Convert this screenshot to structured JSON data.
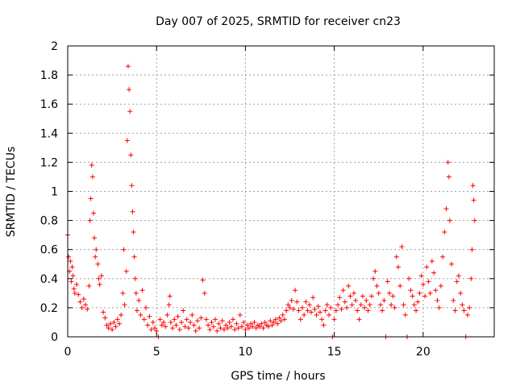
{
  "chart_data": {
    "type": "scatter",
    "title": "Day 007 of 2025, SRMTID for receiver cn23",
    "xlabel": "GPS time / hours",
    "ylabel": "SRMTID / TECUs",
    "xlim": [
      0,
      24
    ],
    "ylim": [
      0,
      2
    ],
    "x_ticks": [
      0,
      5,
      10,
      15,
      20
    ],
    "x_tick_labels": [
      "0",
      "5",
      "10",
      "15",
      "20"
    ],
    "y_ticks": [
      0,
      0.2,
      0.4,
      0.6,
      0.8,
      1,
      1.2,
      1.4,
      1.6,
      1.8,
      2
    ],
    "y_tick_labels": [
      "0",
      "0.2",
      "0.4",
      "0.6",
      "0.8",
      "1",
      "1.2",
      "1.4",
      "1.6",
      "1.8",
      "2"
    ],
    "grid": true,
    "marker": "+",
    "marker_color": "#ff0000",
    "series": [
      {
        "name": "SRMTID",
        "points": [
          [
            0.0,
            0.7
          ],
          [
            0.05,
            0.55
          ],
          [
            0.1,
            0.45
          ],
          [
            0.15,
            0.52
          ],
          [
            0.2,
            0.38
          ],
          [
            0.25,
            0.48
          ],
          [
            0.3,
            0.42
          ],
          [
            0.35,
            0.33
          ],
          [
            0.4,
            0.3
          ],
          [
            0.5,
            0.36
          ],
          [
            0.6,
            0.29
          ],
          [
            0.7,
            0.24
          ],
          [
            0.8,
            0.2
          ],
          [
            0.9,
            0.26
          ],
          [
            1.0,
            0.22
          ],
          [
            1.1,
            0.19
          ],
          [
            1.2,
            0.35
          ],
          [
            1.25,
            0.8
          ],
          [
            1.3,
            0.95
          ],
          [
            1.35,
            1.18
          ],
          [
            1.4,
            1.1
          ],
          [
            1.45,
            0.85
          ],
          [
            1.5,
            0.68
          ],
          [
            1.55,
            0.55
          ],
          [
            1.6,
            0.6
          ],
          [
            1.7,
            0.5
          ],
          [
            1.75,
            0.4
          ],
          [
            1.8,
            0.36
          ],
          [
            1.9,
            0.42
          ],
          [
            2.0,
            0.17
          ],
          [
            2.1,
            0.13
          ],
          [
            2.2,
            0.08
          ],
          [
            2.3,
            0.06
          ],
          [
            2.4,
            0.09
          ],
          [
            2.5,
            0.05
          ],
          [
            2.6,
            0.1
          ],
          [
            2.7,
            0.07
          ],
          [
            2.8,
            0.12
          ],
          [
            2.9,
            0.09
          ],
          [
            3.0,
            0.15
          ],
          [
            3.1,
            0.3
          ],
          [
            3.15,
            0.6
          ],
          [
            3.2,
            0.22
          ],
          [
            3.3,
            0.45
          ],
          [
            3.35,
            1.35
          ],
          [
            3.4,
            1.86
          ],
          [
            3.45,
            1.7
          ],
          [
            3.5,
            1.55
          ],
          [
            3.55,
            1.25
          ],
          [
            3.6,
            1.04
          ],
          [
            3.65,
            0.86
          ],
          [
            3.7,
            0.72
          ],
          [
            3.75,
            0.55
          ],
          [
            3.8,
            0.4
          ],
          [
            3.85,
            0.3
          ],
          [
            3.9,
            0.18
          ],
          [
            4.0,
            0.25
          ],
          [
            4.1,
            0.15
          ],
          [
            4.2,
            0.32
          ],
          [
            4.3,
            0.12
          ],
          [
            4.4,
            0.2
          ],
          [
            4.5,
            0.08
          ],
          [
            4.6,
            0.14
          ],
          [
            4.7,
            0.05
          ],
          [
            4.8,
            0.1
          ],
          [
            4.9,
            0.06
          ],
          [
            5.0,
            0.04
          ],
          [
            5.1,
            0.0
          ],
          [
            5.2,
            0.12
          ],
          [
            5.3,
            0.08
          ],
          [
            5.4,
            0.1
          ],
          [
            5.5,
            0.07
          ],
          [
            5.6,
            0.15
          ],
          [
            5.7,
            0.22
          ],
          [
            5.75,
            0.28
          ],
          [
            5.8,
            0.1
          ],
          [
            5.9,
            0.06
          ],
          [
            6.0,
            0.12
          ],
          [
            6.1,
            0.08
          ],
          [
            6.2,
            0.14
          ],
          [
            6.3,
            0.05
          ],
          [
            6.4,
            0.1
          ],
          [
            6.5,
            0.18
          ],
          [
            6.6,
            0.07
          ],
          [
            6.7,
            0.12
          ],
          [
            6.8,
            0.06
          ],
          [
            6.9,
            0.1
          ],
          [
            7.0,
            0.15
          ],
          [
            7.1,
            0.08
          ],
          [
            7.2,
            0.04
          ],
          [
            7.3,
            0.11
          ],
          [
            7.4,
            0.06
          ],
          [
            7.5,
            0.13
          ],
          [
            7.6,
            0.39
          ],
          [
            7.7,
            0.3
          ],
          [
            7.8,
            0.12
          ],
          [
            7.9,
            0.08
          ],
          [
            8.0,
            0.05
          ],
          [
            8.1,
            0.1
          ],
          [
            8.2,
            0.07
          ],
          [
            8.3,
            0.12
          ],
          [
            8.4,
            0.04
          ],
          [
            8.5,
            0.09
          ],
          [
            8.6,
            0.06
          ],
          [
            8.7,
            0.11
          ],
          [
            8.8,
            0.05
          ],
          [
            8.9,
            0.08
          ],
          [
            9.0,
            0.06
          ],
          [
            9.1,
            0.1
          ],
          [
            9.2,
            0.07
          ],
          [
            9.3,
            0.12
          ],
          [
            9.4,
            0.05
          ],
          [
            9.5,
            0.09
          ],
          [
            9.6,
            0.06
          ],
          [
            9.7,
            0.15
          ],
          [
            9.8,
            0.07
          ],
          [
            9.9,
            0.1
          ],
          [
            10.0,
            0.05
          ],
          [
            10.1,
            0.08
          ],
          [
            10.2,
            0.06
          ],
          [
            10.3,
            0.09
          ],
          [
            10.4,
            0.07
          ],
          [
            10.5,
            0.1
          ],
          [
            10.6,
            0.06
          ],
          [
            10.7,
            0.08
          ],
          [
            10.8,
            0.07
          ],
          [
            10.9,
            0.09
          ],
          [
            11.0,
            0.06
          ],
          [
            11.1,
            0.1
          ],
          [
            11.2,
            0.08
          ],
          [
            11.3,
            0.07
          ],
          [
            11.4,
            0.11
          ],
          [
            11.5,
            0.08
          ],
          [
            11.6,
            0.1
          ],
          [
            11.7,
            0.12
          ],
          [
            11.8,
            0.09
          ],
          [
            11.9,
            0.13
          ],
          [
            12.0,
            0.11
          ],
          [
            12.1,
            0.15
          ],
          [
            12.2,
            0.12
          ],
          [
            12.3,
            0.18
          ],
          [
            12.4,
            0.22
          ],
          [
            12.5,
            0.2
          ],
          [
            12.6,
            0.25
          ],
          [
            12.7,
            0.19
          ],
          [
            12.8,
            0.32
          ],
          [
            12.9,
            0.24
          ],
          [
            13.0,
            0.18
          ],
          [
            13.1,
            0.12
          ],
          [
            13.2,
            0.2
          ],
          [
            13.3,
            0.15
          ],
          [
            13.4,
            0.24
          ],
          [
            13.5,
            0.18
          ],
          [
            13.6,
            0.22
          ],
          [
            13.7,
            0.17
          ],
          [
            13.8,
            0.27
          ],
          [
            13.9,
            0.19
          ],
          [
            14.0,
            0.15
          ],
          [
            14.1,
            0.21
          ],
          [
            14.2,
            0.17
          ],
          [
            14.3,
            0.12
          ],
          [
            14.4,
            0.08
          ],
          [
            14.5,
            0.18
          ],
          [
            14.6,
            0.22
          ],
          [
            14.7,
            0.15
          ],
          [
            14.8,
            0.2
          ],
          [
            14.9,
            0.0
          ],
          [
            15.0,
            0.12
          ],
          [
            15.1,
            0.18
          ],
          [
            15.2,
            0.22
          ],
          [
            15.3,
            0.27
          ],
          [
            15.4,
            0.19
          ],
          [
            15.5,
            0.32
          ],
          [
            15.6,
            0.24
          ],
          [
            15.7,
            0.2
          ],
          [
            15.8,
            0.35
          ],
          [
            15.9,
            0.28
          ],
          [
            16.0,
            0.22
          ],
          [
            16.1,
            0.3
          ],
          [
            16.2,
            0.25
          ],
          [
            16.3,
            0.18
          ],
          [
            16.4,
            0.12
          ],
          [
            16.5,
            0.22
          ],
          [
            16.6,
            0.28
          ],
          [
            16.7,
            0.2
          ],
          [
            16.8,
            0.25
          ],
          [
            16.9,
            0.18
          ],
          [
            17.0,
            0.22
          ],
          [
            17.1,
            0.28
          ],
          [
            17.2,
            0.4
          ],
          [
            17.3,
            0.45
          ],
          [
            17.4,
            0.35
          ],
          [
            17.5,
            0.3
          ],
          [
            17.6,
            0.22
          ],
          [
            17.7,
            0.18
          ],
          [
            17.8,
            0.25
          ],
          [
            17.9,
            0.0
          ],
          [
            18.0,
            0.38
          ],
          [
            18.1,
            0.3
          ],
          [
            18.2,
            0.22
          ],
          [
            18.3,
            0.28
          ],
          [
            18.4,
            0.2
          ],
          [
            18.5,
            0.55
          ],
          [
            18.6,
            0.48
          ],
          [
            18.7,
            0.35
          ],
          [
            18.8,
            0.62
          ],
          [
            18.9,
            0.22
          ],
          [
            19.0,
            0.15
          ],
          [
            19.1,
            0.0
          ],
          [
            19.2,
            0.4
          ],
          [
            19.3,
            0.32
          ],
          [
            19.4,
            0.28
          ],
          [
            19.5,
            0.22
          ],
          [
            19.6,
            0.18
          ],
          [
            19.7,
            0.24
          ],
          [
            19.8,
            0.3
          ],
          [
            19.9,
            0.42
          ],
          [
            20.0,
            0.36
          ],
          [
            20.1,
            0.28
          ],
          [
            20.2,
            0.48
          ],
          [
            20.3,
            0.38
          ],
          [
            20.4,
            0.3
          ],
          [
            20.5,
            0.52
          ],
          [
            20.6,
            0.44
          ],
          [
            20.7,
            0.32
          ],
          [
            20.8,
            0.25
          ],
          [
            20.9,
            0.2
          ],
          [
            21.0,
            0.35
          ],
          [
            21.1,
            0.55
          ],
          [
            21.2,
            0.72
          ],
          [
            21.3,
            0.88
          ],
          [
            21.4,
            1.2
          ],
          [
            21.45,
            1.1
          ],
          [
            21.5,
            0.8
          ],
          [
            21.6,
            0.5
          ],
          [
            21.7,
            0.25
          ],
          [
            21.8,
            0.18
          ],
          [
            21.9,
            0.38
          ],
          [
            22.0,
            0.42
          ],
          [
            22.1,
            0.3
          ],
          [
            22.2,
            0.22
          ],
          [
            22.3,
            0.18
          ],
          [
            22.4,
            0.0
          ],
          [
            22.5,
            0.15
          ],
          [
            22.6,
            0.2
          ],
          [
            22.7,
            0.4
          ],
          [
            22.75,
            0.6
          ],
          [
            22.8,
            1.04
          ],
          [
            22.85,
            0.94
          ],
          [
            22.9,
            0.8
          ]
        ]
      }
    ]
  }
}
